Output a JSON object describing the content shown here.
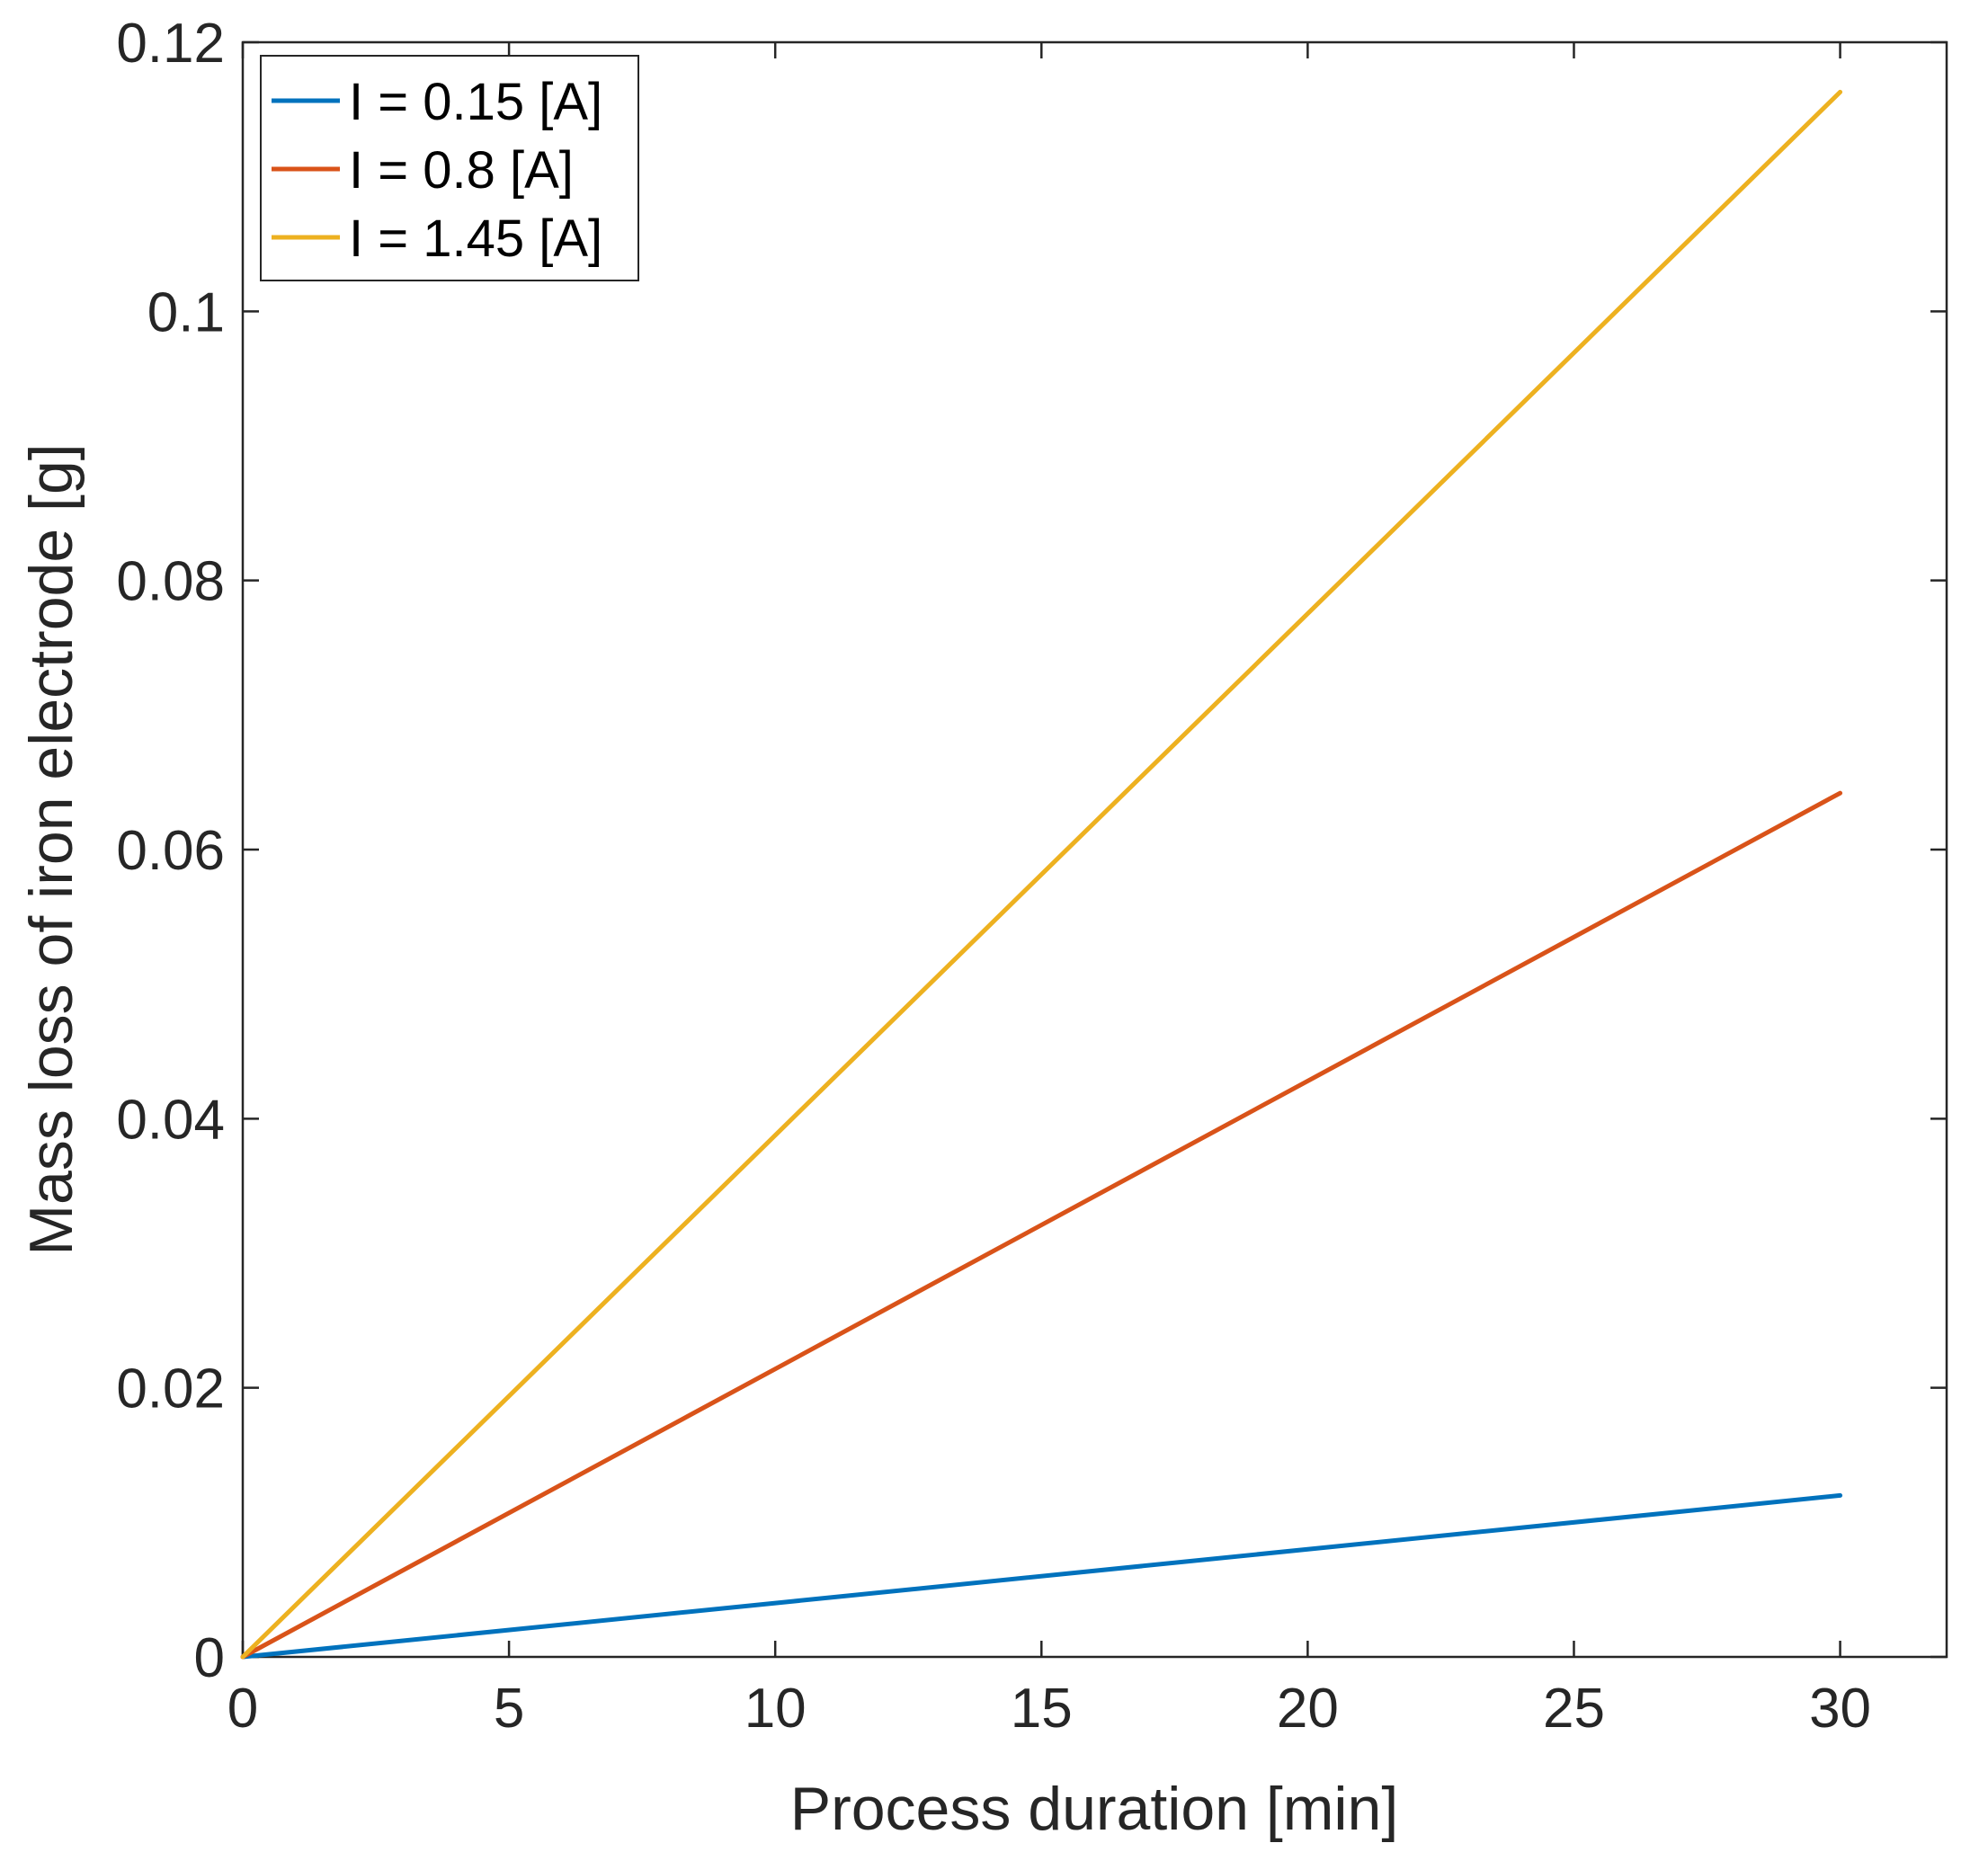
{
  "chart_data": {
    "type": "line",
    "title": "",
    "xlabel": "Process duration [min]",
    "ylabel": "Mass loss of iron electrode [g]",
    "xlim": [
      0,
      32
    ],
    "ylim": [
      0,
      0.12
    ],
    "xticks": [
      0,
      5,
      10,
      15,
      20,
      25,
      30
    ],
    "xtick_labels": [
      "0",
      "5",
      "10",
      "15",
      "20",
      "25",
      "30"
    ],
    "yticks": [
      0,
      0.02,
      0.04,
      0.06,
      0.08,
      0.1,
      0.12
    ],
    "ytick_labels": [
      "0",
      "0.02",
      "0.04",
      "0.06",
      "0.08",
      "0.1",
      "0.12"
    ],
    "grid": false,
    "legend_position": "top-left",
    "series": [
      {
        "name": "I = 0.15 [A]",
        "color": "#0072BD",
        "x": [
          0,
          30
        ],
        "values": [
          0,
          0.012
        ]
      },
      {
        "name": "I = 0.8 [A]",
        "color": "#D95319",
        "x": [
          0,
          30
        ],
        "values": [
          0,
          0.0642
        ]
      },
      {
        "name": "I = 1.45 [A]",
        "color": "#EDB120",
        "x": [
          0,
          30
        ],
        "values": [
          0,
          0.1163
        ]
      }
    ]
  }
}
